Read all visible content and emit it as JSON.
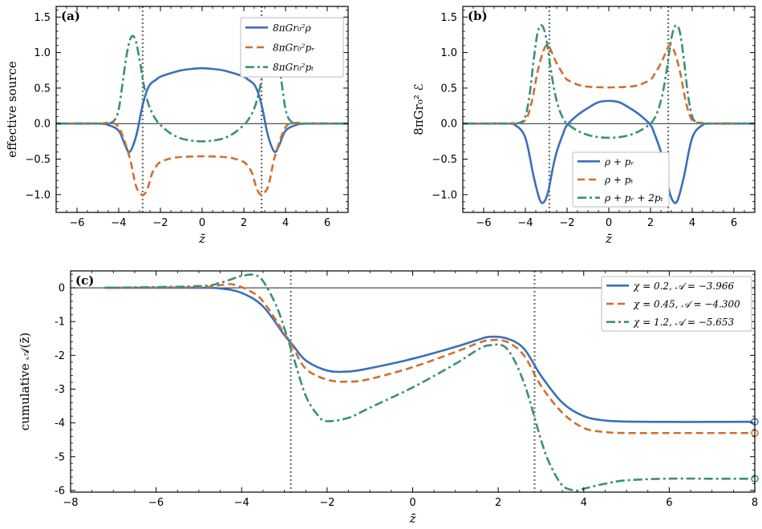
{
  "colors": {
    "blue": "#3b6fba",
    "orange": "#d26e31",
    "green": "#3a9079",
    "guide": "#707070",
    "zero": "#222222"
  },
  "chart_data": [
    {
      "id": "a",
      "type": "line",
      "panel_label": "(a)",
      "xlabel": "z̄",
      "ylabel": "effective source",
      "xlim": [
        -7,
        7
      ],
      "ylim": [
        -1.25,
        1.65
      ],
      "xticks": [
        -6,
        -4,
        -2,
        0,
        2,
        4,
        6
      ],
      "yticks": [
        -1.0,
        -0.5,
        0.0,
        0.5,
        1.0,
        1.5
      ],
      "ytick_labels": [
        "−1.0",
        "−0.5",
        "0.0",
        "0.5",
        "1.0",
        "1.5"
      ],
      "xtick_labels": [
        "−6",
        "−4",
        "−2",
        "0",
        "2",
        "4",
        "6"
      ],
      "vlines": [
        -2.85,
        2.85
      ],
      "legend": "top-right",
      "series": [
        {
          "name": "8πGr₀²ρ",
          "color": "blue",
          "dash": "solid",
          "x": [
            -7,
            -5,
            -4.5,
            -4,
            -3.7,
            -3.5,
            -3.3,
            -3.1,
            -2.9,
            -2.7,
            -2.5,
            -2.2,
            -2,
            -1.5,
            -1,
            -0.5,
            0,
            0.5,
            1,
            1.5,
            2,
            2.2,
            2.5,
            2.7,
            2.9,
            3.1,
            3.3,
            3.5,
            3.7,
            4,
            4.5,
            5,
            7
          ],
          "y": [
            0,
            0,
            -0.02,
            -0.1,
            -0.3,
            -0.4,
            -0.3,
            -0.1,
            0.2,
            0.42,
            0.55,
            0.62,
            0.66,
            0.71,
            0.75,
            0.77,
            0.78,
            0.77,
            0.75,
            0.71,
            0.66,
            0.62,
            0.55,
            0.42,
            0.2,
            -0.1,
            -0.3,
            -0.4,
            -0.3,
            -0.1,
            -0.02,
            0,
            0
          ]
        },
        {
          "name": "8πGr₀²pᵣ",
          "color": "orange",
          "dash": "dashed",
          "x": [
            -7,
            -5,
            -4.5,
            -4,
            -3.5,
            -3.2,
            -3,
            -2.8,
            -2.6,
            -2.4,
            -2.2,
            -2,
            -1.5,
            -1,
            0,
            1,
            1.5,
            2,
            2.2,
            2.4,
            2.6,
            2.8,
            3,
            3.2,
            3.5,
            4,
            4.5,
            5,
            7
          ],
          "y": [
            0,
            0,
            0.01,
            -0.05,
            -0.45,
            -0.85,
            -0.97,
            -1.0,
            -0.9,
            -0.7,
            -0.6,
            -0.54,
            -0.49,
            -0.47,
            -0.46,
            -0.47,
            -0.49,
            -0.54,
            -0.6,
            -0.7,
            -0.9,
            -1.0,
            -0.97,
            -0.85,
            -0.45,
            -0.05,
            0.01,
            0,
            0
          ]
        },
        {
          "name": "8πGr₀²pₜ",
          "color": "green",
          "dash": "dashdot",
          "x": [
            -7,
            -5,
            -4.5,
            -4.2,
            -4,
            -3.8,
            -3.6,
            -3.4,
            -3.2,
            -3,
            -2.8,
            -2.6,
            -2.4,
            -2.2,
            -2,
            -1.5,
            -1,
            -0.5,
            0,
            0.5,
            1,
            1.5,
            2,
            2.2,
            2.4,
            2.6,
            2.8,
            3,
            3.2,
            3.4,
            3.6,
            3.8,
            4,
            4.2,
            4.5,
            5,
            7
          ],
          "y": [
            0,
            0,
            0,
            0.05,
            0.2,
            0.6,
            1.0,
            1.22,
            1.18,
            0.9,
            0.55,
            0.3,
            0.15,
            0.05,
            -0.02,
            -0.14,
            -0.21,
            -0.24,
            -0.25,
            -0.24,
            -0.21,
            -0.14,
            -0.02,
            0.05,
            0.15,
            0.3,
            0.55,
            0.9,
            1.18,
            1.22,
            1.0,
            0.6,
            0.2,
            0.05,
            0,
            0,
            0
          ]
        }
      ]
    },
    {
      "id": "b",
      "type": "line",
      "panel_label": "(b)",
      "xlabel": "z̄",
      "ylabel": "8πGr₀² ℰ",
      "xlim": [
        -7,
        7
      ],
      "ylim": [
        -1.25,
        1.65
      ],
      "xticks": [
        -6,
        -4,
        -2,
        0,
        2,
        4,
        6
      ],
      "yticks": [
        -1.0,
        -0.5,
        0.0,
        0.5,
        1.0,
        1.5
      ],
      "ytick_labels": [
        "−1.0",
        "−0.5",
        "0.0",
        "0.5",
        "1.0",
        "1.5"
      ],
      "xtick_labels": [
        "−6",
        "−4",
        "−2",
        "0",
        "2",
        "4",
        "6"
      ],
      "vlines": [
        -2.85,
        2.85
      ],
      "legend": "bottom-right",
      "series": [
        {
          "name": "ρ + pᵣ",
          "color": "blue",
          "dash": "solid",
          "x": [
            -7,
            -5,
            -4.5,
            -4,
            -3.6,
            -3.3,
            -3.1,
            -2.9,
            -2.7,
            -2.5,
            -2.2,
            -2,
            -1.5,
            -1,
            -0.5,
            0,
            0.5,
            1,
            1.5,
            2,
            2.2,
            2.5,
            2.7,
            2.9,
            3.1,
            3.3,
            3.6,
            4,
            4.5,
            5,
            7
          ],
          "y": [
            0,
            0,
            -0.02,
            -0.2,
            -0.75,
            -1.08,
            -1.1,
            -0.95,
            -0.65,
            -0.4,
            -0.15,
            -0.02,
            0.12,
            0.22,
            0.3,
            0.32,
            0.3,
            0.22,
            0.12,
            -0.02,
            -0.15,
            -0.4,
            -0.65,
            -0.95,
            -1.1,
            -1.08,
            -0.75,
            -0.2,
            -0.02,
            0,
            0
          ]
        },
        {
          "name": "ρ + pₜ",
          "color": "orange",
          "dash": "dashed",
          "x": [
            -7,
            -5,
            -4.5,
            -4,
            -3.7,
            -3.4,
            -3.1,
            -2.9,
            -2.7,
            -2.5,
            -2.2,
            -2,
            -1.5,
            -1,
            0,
            1,
            1.5,
            2,
            2.2,
            2.5,
            2.7,
            2.9,
            3.1,
            3.4,
            3.7,
            4,
            4.5,
            5,
            7
          ],
          "y": [
            0,
            0,
            0.01,
            0.05,
            0.3,
            0.75,
            1.05,
            1.1,
            0.98,
            0.85,
            0.7,
            0.62,
            0.55,
            0.52,
            0.51,
            0.52,
            0.55,
            0.62,
            0.7,
            0.85,
            0.98,
            1.1,
            1.05,
            0.75,
            0.3,
            0.05,
            0.01,
            0,
            0
          ]
        },
        {
          "name": "ρ + pᵣ + 2pₜ",
          "color": "green",
          "dash": "dashdot",
          "x": [
            -7,
            -5,
            -4.5,
            -4.2,
            -4,
            -3.8,
            -3.6,
            -3.4,
            -3.2,
            -3,
            -2.8,
            -2.6,
            -2.4,
            -2.2,
            -2,
            -1.5,
            -1,
            -0.5,
            0,
            0.5,
            1,
            1.5,
            2,
            2.2,
            2.4,
            2.6,
            2.8,
            3,
            3.2,
            3.4,
            3.6,
            3.8,
            4,
            4.2,
            4.5,
            5,
            7
          ],
          "y": [
            0,
            0,
            0,
            0.02,
            0.1,
            0.4,
            0.9,
            1.3,
            1.38,
            1.2,
            0.8,
            0.45,
            0.22,
            0.08,
            0,
            -0.1,
            -0.16,
            -0.19,
            -0.2,
            -0.19,
            -0.16,
            -0.1,
            0,
            0.08,
            0.22,
            0.45,
            0.8,
            1.2,
            1.38,
            1.3,
            0.9,
            0.4,
            0.1,
            0.02,
            0,
            0,
            0
          ]
        }
      ]
    },
    {
      "id": "c",
      "type": "line",
      "panel_label": "(c)",
      "xlabel": "z̄",
      "ylabel": "cumulative 𝒜(z̄)",
      "xlim": [
        -8,
        8
      ],
      "ylim": [
        -6.05,
        0.5
      ],
      "xticks": [
        -8,
        -6,
        -4,
        -2,
        0,
        2,
        4,
        6,
        8
      ],
      "xtick_labels": [
        "−8",
        "−6",
        "−4",
        "−2",
        "0",
        "2",
        "4",
        "6",
        "8"
      ],
      "yticks": [
        0,
        -1,
        -2,
        -3,
        -4,
        -5,
        -6
      ],
      "ytick_labels": [
        "0",
        "-1",
        "-2",
        "-3",
        "-4",
        "-5",
        "-6"
      ],
      "vlines": [
        -2.85,
        2.85
      ],
      "legend": "top-right",
      "series": [
        {
          "name": "χ = 0.2,  𝒜 = −3.966",
          "color": "blue",
          "dash": "solid",
          "x": [
            -7.2,
            -5,
            -4.5,
            -4,
            -3.5,
            -3,
            -2.8,
            -2.5,
            -2,
            -1.5,
            -1,
            0,
            1,
            1.5,
            1.8,
            2.2,
            2.6,
            3,
            3.5,
            4,
            4.5,
            5,
            6,
            7,
            8
          ],
          "y": [
            0,
            0,
            -0.02,
            -0.15,
            -0.55,
            -1.4,
            -1.7,
            -2.15,
            -2.45,
            -2.48,
            -2.38,
            -2.1,
            -1.75,
            -1.55,
            -1.45,
            -1.5,
            -1.8,
            -2.6,
            -3.4,
            -3.8,
            -3.93,
            -3.96,
            -3.97,
            -3.97,
            -3.966
          ],
          "end_marker": true
        },
        {
          "name": "χ = 0.45,  𝒜 = −4.300",
          "color": "orange",
          "dash": "dashed",
          "x": [
            -7.2,
            -5,
            -4.5,
            -4.2,
            -3.8,
            -3.5,
            -3,
            -2.8,
            -2.5,
            -2,
            -1.5,
            -1,
            0,
            1,
            1.5,
            1.8,
            2.2,
            2.6,
            3,
            3.5,
            4,
            4.5,
            5,
            6,
            7,
            8
          ],
          "y": [
            0,
            0.02,
            0.08,
            0.1,
            -0.1,
            -0.4,
            -1.35,
            -1.75,
            -2.4,
            -2.72,
            -2.78,
            -2.7,
            -2.35,
            -1.9,
            -1.65,
            -1.55,
            -1.6,
            -2.0,
            -2.9,
            -3.7,
            -4.15,
            -4.27,
            -4.3,
            -4.3,
            -4.3,
            -4.3
          ],
          "end_marker": true
        },
        {
          "name": "χ = 1.2,  𝒜 = −5.653",
          "color": "green",
          "dash": "dashdot",
          "x": [
            -7.2,
            -5,
            -4.5,
            -4,
            -3.7,
            -3.5,
            -3.2,
            -3,
            -2.8,
            -2.5,
            -2.2,
            -2,
            -1.5,
            -1,
            0,
            1,
            1.5,
            1.8,
            2.2,
            2.6,
            3,
            3.2,
            3.5,
            3.8,
            4,
            4.5,
            5,
            6,
            7,
            8
          ],
          "y": [
            0,
            0.05,
            0.15,
            0.35,
            0.38,
            0.2,
            -0.5,
            -1.2,
            -2.0,
            -3.2,
            -3.8,
            -3.95,
            -3.85,
            -3.55,
            -2.95,
            -2.25,
            -1.85,
            -1.7,
            -1.8,
            -2.8,
            -4.5,
            -5.2,
            -5.85,
            -6.0,
            -5.95,
            -5.8,
            -5.7,
            -5.65,
            -5.653,
            -5.653
          ],
          "end_marker": true
        }
      ]
    }
  ]
}
